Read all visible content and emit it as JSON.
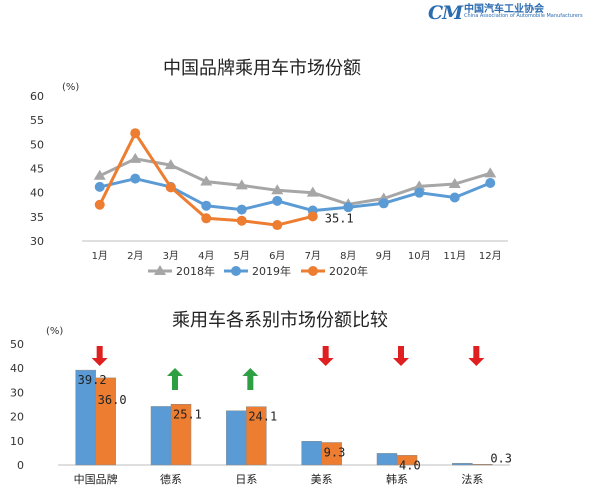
{
  "logo": {
    "mark": "CM",
    "name": "中国汽车工业协会",
    "english": "China Association of Automobile Manufacturers"
  },
  "chart_data": [
    {
      "type": "line",
      "title": "中国品牌乘用车市场份额",
      "ylabel": "(%)",
      "xlabel": "",
      "ylim": [
        30,
        60
      ],
      "yticks": [
        30,
        35,
        40,
        45,
        50,
        55,
        60
      ],
      "grid": false,
      "legend": "bottom",
      "categories": [
        "1月",
        "2月",
        "3月",
        "4月",
        "5月",
        "6月",
        "7月",
        "8月",
        "9月",
        "10月",
        "11月",
        "12月"
      ],
      "series": [
        {
          "name": "2018年",
          "color": "#a6a6a6",
          "marker": "triangle",
          "values": [
            43.5,
            47,
            45.7,
            42.3,
            41.5,
            40.5,
            40,
            37.6,
            38.8,
            41.3,
            41.8,
            44
          ]
        },
        {
          "name": "2019年",
          "color": "#5b9bd5",
          "marker": "circle",
          "values": [
            41.2,
            42.9,
            41.2,
            37.3,
            36.5,
            38.3,
            36.3,
            37,
            37.8,
            40,
            39,
            42
          ]
        },
        {
          "name": "2020年",
          "color": "#ed7d31",
          "marker": "circle",
          "values": [
            37.5,
            52.3,
            41.1,
            34.7,
            34.2,
            33.3,
            35.1,
            null,
            null,
            null,
            null,
            null
          ]
        }
      ],
      "annotations": [
        {
          "category": "7月",
          "text": "35.1"
        }
      ]
    },
    {
      "type": "bar",
      "title": "乘用车各系别市场份额比较",
      "ylabel": "(%)",
      "xlabel": "",
      "ylim": [
        0,
        50
      ],
      "yticks": [
        0,
        10,
        20,
        30,
        40,
        50
      ],
      "grid": false,
      "categories": [
        "中国品牌",
        "德系",
        "日系",
        "美系",
        "韩系",
        "法系"
      ],
      "series": [
        {
          "color": "#5b9bd5",
          "values": [
            39.2,
            24.2,
            22.4,
            9.8,
            4.8,
            0.7
          ]
        },
        {
          "color": "#ed7d31",
          "values": [
            36.0,
            25.1,
            24.1,
            9.3,
            4.0,
            0.3
          ]
        }
      ],
      "data_labels": [
        {
          "category": "中国品牌",
          "text": "39.2"
        },
        {
          "category": "中国品牌",
          "text": "36.0"
        },
        {
          "category": "德系",
          "text": "25.1"
        },
        {
          "category": "日系",
          "text": "24.1"
        },
        {
          "category": "美系",
          "text": "9.3"
        },
        {
          "category": "韩系",
          "text": "4.0"
        },
        {
          "category": "法系",
          "text": "0.3"
        }
      ],
      "trend_arrows": [
        {
          "category": "中国品牌",
          "direction": "down",
          "color": "#e02020"
        },
        {
          "category": "德系",
          "direction": "up",
          "color": "#2ea043"
        },
        {
          "category": "日系",
          "direction": "up",
          "color": "#2ea043"
        },
        {
          "category": "美系",
          "direction": "down",
          "color": "#e02020"
        },
        {
          "category": "韩系",
          "direction": "down",
          "color": "#e02020"
        },
        {
          "category": "法系",
          "direction": "down",
          "color": "#e02020"
        }
      ]
    }
  ]
}
